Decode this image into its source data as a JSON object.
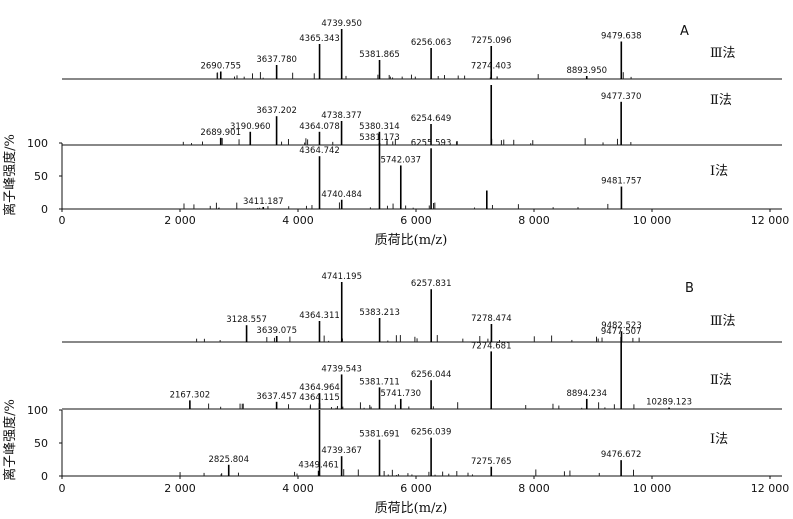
{
  "chart_data": [
    {
      "type": "line",
      "panel": "A",
      "xlim": [
        0,
        12000
      ],
      "xticks": [
        0,
        2000,
        4000,
        6000,
        8000,
        10000,
        12000
      ],
      "xtick_labels": [
        "0",
        "2 000",
        "4 000",
        "6 000",
        "8 000",
        "10 000",
        "12 000"
      ],
      "xlabel": "质荷比(m/z)",
      "ylabel": "离子峰强度/%",
      "yticks": [
        0,
        50,
        100
      ],
      "ytick_labels": [
        "0",
        "50",
        "100"
      ],
      "series": [
        {
          "name": "Ⅲ法",
          "peaks": [
            {
              "x": 2690.755,
              "y": 15,
              "label": "2690.755"
            },
            {
              "x": 3637.78,
              "y": 28,
              "label": "3637.780"
            },
            {
              "x": 4365.343,
              "y": 70,
              "label": "4365.343"
            },
            {
              "x": 4739.95,
              "y": 100,
              "label": "4739.950"
            },
            {
              "x": 5381.865,
              "y": 38,
              "label": "5381.865"
            },
            {
              "x": 6256.063,
              "y": 62,
              "label": "6256.063"
            },
            {
              "x": 7275.096,
              "y": 66,
              "label": "7275.096"
            },
            {
              "x": 7274.403,
              "y": 15,
              "label": "7274.403"
            },
            {
              "x": 8893.95,
              "y": 6,
              "label": "8893.950"
            },
            {
              "x": 9479.638,
              "y": 75,
              "label": "9479.638"
            }
          ]
        },
        {
          "name": "Ⅱ法",
          "peaks": [
            {
              "x": 2689.901,
              "y": 12,
              "label": "2689.901"
            },
            {
              "x": 3190.96,
              "y": 22,
              "label": "3190.960"
            },
            {
              "x": 3637.202,
              "y": 48,
              "label": "3637.202"
            },
            {
              "x": 4364.078,
              "y": 22,
              "label": "4364.078"
            },
            {
              "x": 4738.377,
              "y": 40,
              "label": "4738.377"
            },
            {
              "x": 5380.314,
              "y": 22,
              "label": "5380.314"
            },
            {
              "x": 6254.649,
              "y": 35,
              "label": "6254.649"
            },
            {
              "x": 7275,
              "y": 100,
              "label": ""
            },
            {
              "x": 9477.37,
              "y": 72,
              "label": "9477.370"
            }
          ]
        },
        {
          "name": "Ⅰ法",
          "peaks": [
            {
              "x": 3411.187,
              "y": 3,
              "label": "3411.187"
            },
            {
              "x": 4364.742,
              "y": 80,
              "label": "4364.742"
            },
            {
              "x": 4740.484,
              "y": 14,
              "label": "4740.484"
            },
            {
              "x": 5381.173,
              "y": 100,
              "label": "5381.173"
            },
            {
              "x": 5742.037,
              "y": 66,
              "label": "5742.037"
            },
            {
              "x": 6255.593,
              "y": 92,
              "label": "6255.593"
            },
            {
              "x": 7200,
              "y": 28,
              "label": ""
            },
            {
              "x": 9481.757,
              "y": 34,
              "label": "9481.757"
            }
          ]
        }
      ]
    },
    {
      "type": "line",
      "panel": "B",
      "xlim": [
        0,
        12000
      ],
      "xticks": [
        0,
        2000,
        4000,
        6000,
        8000,
        10000,
        12000
      ],
      "xtick_labels": [
        "0",
        "2 000",
        "4 000",
        "6 000",
        "8 000",
        "10 000",
        "12 000"
      ],
      "xlabel": "质荷比(m/z)",
      "ylabel": "离子峰强度/%",
      "yticks": [
        0,
        50,
        100
      ],
      "ytick_labels": [
        "0",
        "50",
        "100"
      ],
      "series": [
        {
          "name": "Ⅲ法",
          "peaks": [
            {
              "x": 3128.557,
              "y": 28,
              "label": "3128.557"
            },
            {
              "x": 3639.075,
              "y": 10,
              "label": "3639.075"
            },
            {
              "x": 4364.311,
              "y": 35,
              "label": "4364.311"
            },
            {
              "x": 4741.195,
              "y": 100,
              "label": "4741.195"
            },
            {
              "x": 5383.213,
              "y": 40,
              "label": "5383.213"
            },
            {
              "x": 6257.831,
              "y": 88,
              "label": "6257.831"
            },
            {
              "x": 7278.474,
              "y": 30,
              "label": "7278.474"
            },
            {
              "x": 9482.523,
              "y": 18,
              "label": "9482.523"
            }
          ]
        },
        {
          "name": "Ⅱ法",
          "peaks": [
            {
              "x": 2167.302,
              "y": 12,
              "label": "2167.302"
            },
            {
              "x": 3637.457,
              "y": 10,
              "label": "3637.457"
            },
            {
              "x": 4364.964,
              "y": 22,
              "label": "4364.964"
            },
            {
              "x": 4364.115,
              "y": 8,
              "label": "4364.115"
            },
            {
              "x": 4739.543,
              "y": 48,
              "label": "4739.543"
            },
            {
              "x": 5381.711,
              "y": 30,
              "label": "5381.711"
            },
            {
              "x": 5741.73,
              "y": 14,
              "label": "5741.730"
            },
            {
              "x": 6256.044,
              "y": 40,
              "label": "6256.044"
            },
            {
              "x": 7274.681,
              "y": 80,
              "label": "7274.681"
            },
            {
              "x": 8894.234,
              "y": 14,
              "label": "8894.234"
            },
            {
              "x": 9477.507,
              "y": 100,
              "label": "9477.507"
            },
            {
              "x": 10289.123,
              "y": 2,
              "label": "10289.123"
            }
          ]
        },
        {
          "name": "Ⅰ法",
          "peaks": [
            {
              "x": 2825.804,
              "y": 17,
              "label": "2825.804"
            },
            {
              "x": 4349.461,
              "y": 8,
              "label": "4349.461"
            },
            {
              "x": 4364.5,
              "y": 100,
              "label": ""
            },
            {
              "x": 4739.367,
              "y": 30,
              "label": "4739.367"
            },
            {
              "x": 5381.691,
              "y": 55,
              "label": "5381.691"
            },
            {
              "x": 6256.039,
              "y": 58,
              "label": "6256.039"
            },
            {
              "x": 7275.765,
              "y": 14,
              "label": "7275.765"
            },
            {
              "x": 9476.672,
              "y": 24,
              "label": "9476.672"
            }
          ]
        }
      ]
    }
  ]
}
